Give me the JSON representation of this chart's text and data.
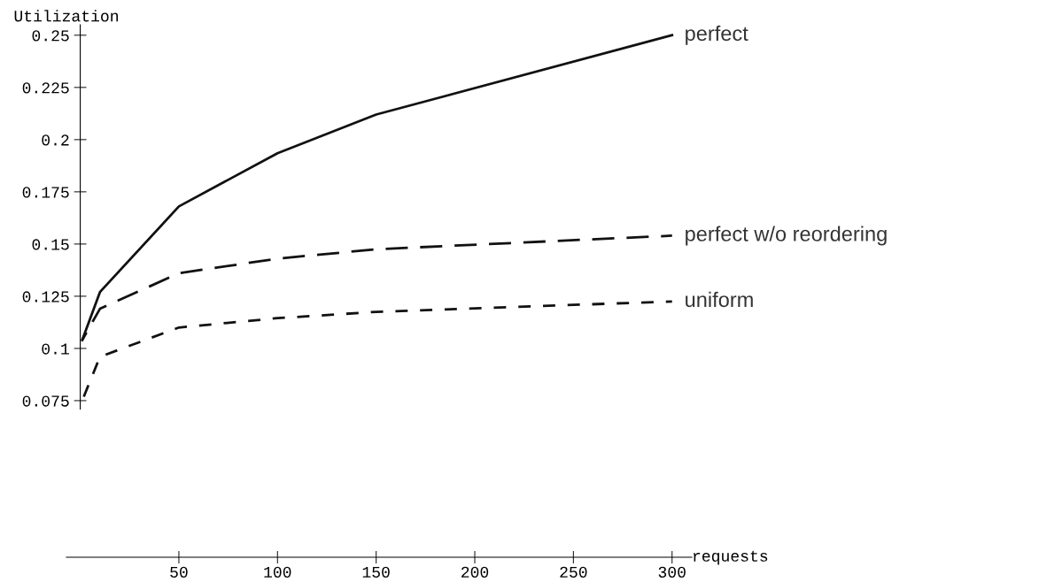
{
  "chart_data": {
    "type": "line",
    "xlabel": "requests",
    "ylabel": "Utilization",
    "x": [
      1,
      10,
      50,
      100,
      150,
      300
    ],
    "series": [
      {
        "name": "perfect",
        "color": "#111111",
        "line_style": "solid",
        "values": [
          0.104,
          0.127,
          0.168,
          0.1935,
          0.212,
          0.25
        ]
      },
      {
        "name": "perfect w/o reordering",
        "color": "#111111",
        "line_style": "dashed",
        "values": [
          0.104,
          0.119,
          0.136,
          0.143,
          0.1475,
          0.154
        ]
      },
      {
        "name": "uniform",
        "color": "#111111",
        "line_style": "dashed",
        "values": [
          0.075,
          0.096,
          0.11,
          0.1145,
          0.1175,
          0.1225
        ]
      }
    ],
    "xlim": [
      -7,
      310
    ],
    "ylim": [
      0,
      0.255
    ],
    "xticks": [
      50,
      100,
      150,
      200,
      250,
      300
    ],
    "yticks": [
      0.075,
      0.1,
      0.125,
      0.15,
      0.175,
      0.2,
      0.225,
      0.25
    ],
    "grid": false,
    "legend": false,
    "marker": "none"
  }
}
